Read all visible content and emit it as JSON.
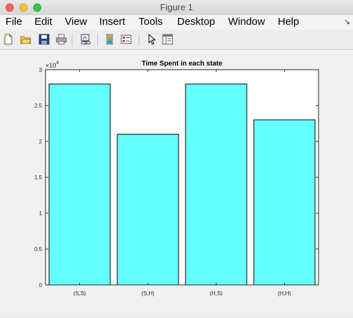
{
  "window": {
    "title": "Figure 1"
  },
  "menubar": {
    "items": [
      "File",
      "Edit",
      "View",
      "Insert",
      "Tools",
      "Desktop",
      "Window",
      "Help"
    ]
  },
  "toolbar": {
    "icons": [
      "new-figure-icon",
      "open-file-icon",
      "save-icon",
      "print-icon",
      "link-plot-icon",
      "colorbar-icon",
      "legend-icon",
      "pointer-icon",
      "property-editor-icon"
    ]
  },
  "colors": {
    "bar_fill": "#66ffff",
    "bar_edge": "#000000"
  },
  "chart_data": {
    "type": "bar",
    "title": "Time Spent in each state",
    "categories": [
      "(S,S)",
      "(S,H)",
      "(H,S)",
      "(H,H)"
    ],
    "values": [
      28000,
      21000,
      28000,
      23000
    ],
    "ylim": [
      0,
      30000
    ],
    "y_ticks": [
      0,
      5000,
      10000,
      15000,
      20000,
      25000,
      30000
    ],
    "y_tick_labels": [
      "0",
      "0.5",
      "1",
      "1.5",
      "2",
      "2.5",
      "3"
    ],
    "y_exponent_base": "×10",
    "y_exponent_power": "4",
    "xlabel": "",
    "ylabel": "",
    "grid": false
  }
}
